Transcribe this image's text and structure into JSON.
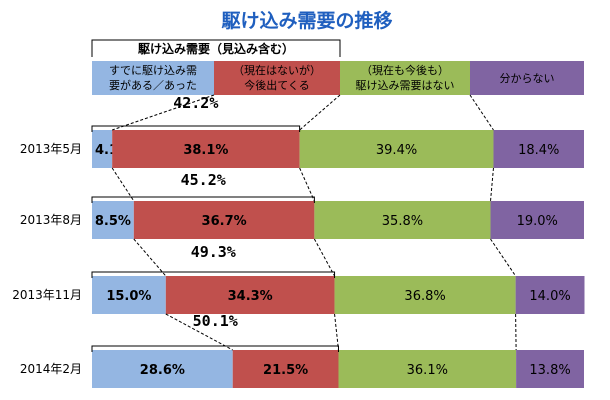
{
  "chart_data": {
    "type": "bar",
    "stacked": true,
    "orientation": "horizontal",
    "title": "駆け込み需要の推移",
    "group_label": "駆け込み需要（見込み含む）",
    "categories": [
      "2013年5月",
      "2013年8月",
      "2013年11月",
      "2014年2月"
    ],
    "series": [
      {
        "name": "すでに駆け込み需要がある／あった",
        "name_lines": [
          "すでに駆け込み需",
          "要がある／あった"
        ],
        "color": "#94b6e2",
        "values": [
          4.1,
          8.5,
          15.0,
          28.6
        ],
        "labels": [
          "4.1%",
          "8.5%",
          "15.0%",
          "28.6%"
        ]
      },
      {
        "name": "（現在はないが）今後出てくる",
        "name_lines": [
          "（現在はないが）",
          "今後出てくる"
        ],
        "color": "#c0504d",
        "values": [
          38.1,
          36.7,
          34.3,
          21.5
        ],
        "labels": [
          "38.1%",
          "36.7%",
          "34.3%",
          "21.5%"
        ]
      },
      {
        "name": "（現在も今後も）駆け込み需要はない",
        "name_lines": [
          "（現在も今後も）",
          "駆け込み需要はない"
        ],
        "color": "#9bbb59",
        "values": [
          39.4,
          35.8,
          36.8,
          36.1
        ],
        "labels": [
          "39.4%",
          "35.8%",
          "36.8%",
          "36.1%"
        ]
      },
      {
        "name": "分からない",
        "name_lines": [
          "分からない"
        ],
        "color": "#8064a2",
        "values": [
          18.4,
          19.0,
          14.0,
          13.8
        ],
        "labels": [
          "18.4%",
          "19.0%",
          "14.0%",
          "13.8%"
        ]
      }
    ],
    "combined_totals": [
      42.2,
      45.2,
      49.3,
      50.1
    ],
    "combined_labels": [
      "42.2%",
      "45.2%",
      "49.3%",
      "50.1%"
    ],
    "xlim": [
      0,
      100
    ],
    "grid": false,
    "legend": "top"
  }
}
